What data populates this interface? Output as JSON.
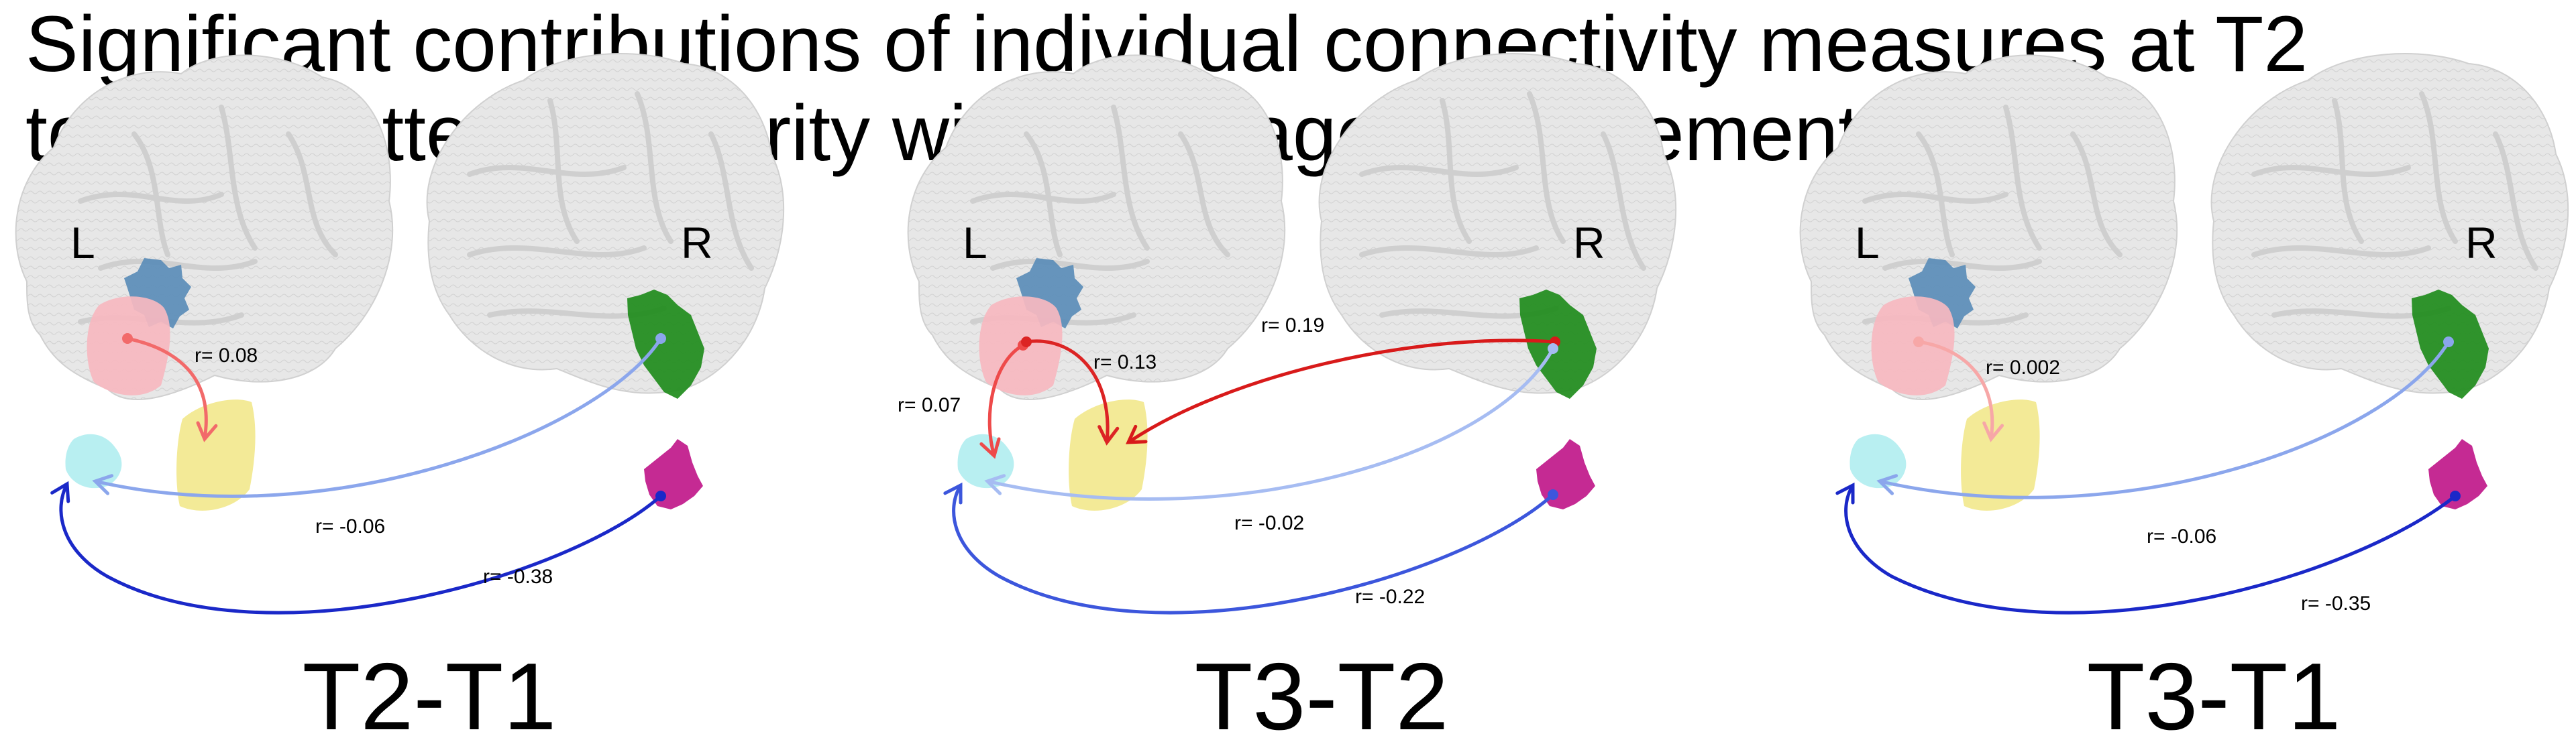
{
  "title": {
    "line1": "Significant contributions of individual connectivity measures at T2",
    "line2": "to RSA pattern similarity with language improvement"
  },
  "hemisphere_labels": {
    "left": "L",
    "right": "R"
  },
  "region_colors": {
    "dorsal_blue": "#5b8db8",
    "pink": "#f7b8c0",
    "yellow": "#f2e88e",
    "cyan": "#b2eef0",
    "green": "#1f8c1c",
    "magenta": "#c0188a"
  },
  "panels": [
    {
      "label": "T2-T1",
      "connections": [
        {
          "r": "r= 0.08",
          "color": "#f26a6a"
        },
        {
          "r": "r= -0.06",
          "color": "#8ba6ec"
        },
        {
          "r": "r= -0.38",
          "color": "#1a28c8"
        }
      ]
    },
    {
      "label": "T3-T2",
      "connections": [
        {
          "r": "r= 0.07",
          "color": "#ee4a4a"
        },
        {
          "r": "r= 0.13",
          "color": "#dc2424"
        },
        {
          "r": "r= 0.19",
          "color": "#d81a1a"
        },
        {
          "r": "r= -0.02",
          "color": "#a6bcf2"
        },
        {
          "r": "r= -0.22",
          "color": "#3c56dc"
        }
      ]
    },
    {
      "label": "T3-T1",
      "connections": [
        {
          "r": "r= 0.002",
          "color": "#f7a7a7"
        },
        {
          "r": "r= -0.06",
          "color": "#8ba6ec"
        },
        {
          "r": "r= -0.35",
          "color": "#1a28c8"
        }
      ]
    }
  ]
}
